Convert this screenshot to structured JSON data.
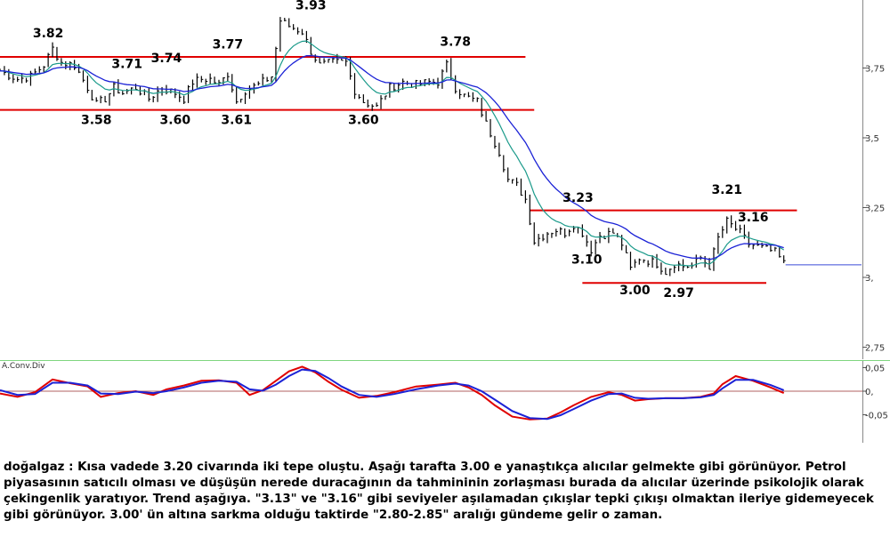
{
  "chart_data": [
    {
      "type": "line",
      "panel": "price",
      "instrument": "doğalgaz",
      "y_ticks": [
        "3,75",
        "3,5",
        "3,25",
        "3,",
        "2,75"
      ],
      "ylim": [
        2.68,
        4.0
      ],
      "xlim": [
        0,
        200
      ],
      "grid": false,
      "colors": {
        "bars": "#000000",
        "ma_fast": "#1a9a8a",
        "ma_slow": "#1b22d6",
        "levels": "#e00000",
        "last_price": "#3a4bd8"
      },
      "price_path": [
        [
          0,
          3.74
        ],
        [
          4,
          3.71
        ],
        [
          7,
          3.72
        ],
        [
          10,
          3.76
        ],
        [
          12,
          3.82
        ],
        [
          14,
          3.77
        ],
        [
          17,
          3.76
        ],
        [
          20,
          3.68
        ],
        [
          22,
          3.62
        ],
        [
          24,
          3.64
        ],
        [
          26,
          3.68
        ],
        [
          28,
          3.66
        ],
        [
          31,
          3.68
        ],
        [
          34,
          3.64
        ],
        [
          37,
          3.68
        ],
        [
          40,
          3.66
        ],
        [
          42,
          3.64
        ],
        [
          44,
          3.7
        ],
        [
          46,
          3.71
        ],
        [
          48,
          3.71
        ],
        [
          50,
          3.69
        ],
        [
          52,
          3.73
        ],
        [
          54,
          3.63
        ],
        [
          56,
          3.67
        ],
        [
          59,
          3.69
        ],
        [
          62,
          3.72
        ],
        [
          64,
          3.92
        ],
        [
          66,
          3.9
        ],
        [
          69,
          3.88
        ],
        [
          71,
          3.81
        ],
        [
          73,
          3.76
        ],
        [
          76,
          3.77
        ],
        [
          79,
          3.77
        ],
        [
          81,
          3.67
        ],
        [
          83,
          3.63
        ],
        [
          86,
          3.61
        ],
        [
          89,
          3.68
        ],
        [
          92,
          3.7
        ],
        [
          95,
          3.69
        ],
        [
          98,
          3.7
        ],
        [
          100,
          3.7
        ],
        [
          102,
          3.76
        ],
        [
          104,
          3.68
        ],
        [
          106,
          3.65
        ],
        [
          109,
          3.63
        ],
        [
          111,
          3.55
        ],
        [
          114,
          3.45
        ],
        [
          116,
          3.35
        ],
        [
          118,
          3.33
        ],
        [
          120,
          3.28
        ],
        [
          122,
          3.13
        ],
        [
          125,
          3.16
        ],
        [
          127,
          3.17
        ],
        [
          129,
          3.16
        ],
        [
          131,
          3.19
        ],
        [
          133,
          3.16
        ],
        [
          135,
          3.1
        ],
        [
          137,
          3.15
        ],
        [
          140,
          3.16
        ],
        [
          142,
          3.12
        ],
        [
          144,
          3.03
        ],
        [
          146,
          3.07
        ],
        [
          148,
          3.06
        ],
        [
          150,
          3.05
        ],
        [
          152,
          3.02
        ],
        [
          154,
          3.05
        ],
        [
          156,
          3.04
        ],
        [
          158,
          3.04
        ],
        [
          160,
          3.07
        ],
        [
          162,
          3.04
        ],
        [
          164,
          3.14
        ],
        [
          166,
          3.2
        ],
        [
          169,
          3.16
        ],
        [
          171,
          3.12
        ],
        [
          173,
          3.11
        ],
        [
          175,
          3.1
        ],
        [
          177,
          3.09
        ],
        [
          179,
          3.05
        ]
      ],
      "series": [
        {
          "values": []
        },
        {
          "values": []
        }
      ],
      "levels": [
        {
          "y": 3.79,
          "x_range": [
            0,
            120
          ]
        },
        {
          "y": 3.6,
          "x_range": [
            0,
            122
          ]
        },
        {
          "y": 3.24,
          "x_range": [
            121,
            182
          ]
        },
        {
          "y": 2.98,
          "x_range": [
            133,
            175
          ]
        }
      ],
      "last_price": 3.045,
      "annotations": [
        {
          "text": "3.82",
          "x": 11,
          "y": 3.86
        },
        {
          "text": "3.58",
          "x": 22,
          "y": 3.55
        },
        {
          "text": "3.71",
          "x": 29,
          "y": 3.75
        },
        {
          "text": "3.74",
          "x": 38,
          "y": 3.77
        },
        {
          "text": "3.60",
          "x": 40,
          "y": 3.55
        },
        {
          "text": "3.77",
          "x": 52,
          "y": 3.82
        },
        {
          "text": "3.61",
          "x": 54,
          "y": 3.55
        },
        {
          "text": "3.93",
          "x": 71,
          "y": 3.96
        },
        {
          "text": "3.60",
          "x": 83,
          "y": 3.55
        },
        {
          "text": "3.78",
          "x": 104,
          "y": 3.83
        },
        {
          "text": "3.23",
          "x": 132,
          "y": 3.27
        },
        {
          "text": "3.21",
          "x": 166,
          "y": 3.3
        },
        {
          "text": "3.16",
          "x": 172,
          "y": 3.2
        },
        {
          "text": "3.10",
          "x": 134,
          "y": 3.05
        },
        {
          "text": "3.00",
          "x": 145,
          "y": 2.94
        },
        {
          "text": "2.97",
          "x": 155,
          "y": 2.93
        }
      ]
    },
    {
      "type": "line",
      "panel": "indicator",
      "title": "A.Conv.Div",
      "y_ticks": [
        "0,05",
        "0,",
        "-0,05"
      ],
      "ylim": [
        -0.075,
        0.075
      ],
      "xlim": [
        0,
        200
      ],
      "zero_line": true,
      "colors": {
        "macd": "#e00000",
        "signal": "#1b22d6",
        "zero": "#b06060",
        "separator": "#7fd67f"
      },
      "series": [
        {
          "values": [
            [
              0,
              -0.005
            ],
            [
              4,
              -0.012
            ],
            [
              8,
              -0.002
            ],
            [
              12,
              0.025
            ],
            [
              16,
              0.017
            ],
            [
              20,
              0.01
            ],
            [
              23,
              -0.012
            ],
            [
              27,
              -0.004
            ],
            [
              31,
              0.0
            ],
            [
              35,
              -0.008
            ],
            [
              38,
              0.004
            ],
            [
              42,
              0.012
            ],
            [
              46,
              0.022
            ],
            [
              50,
              0.023
            ],
            [
              54,
              0.018
            ],
            [
              57,
              -0.008
            ],
            [
              60,
              0.002
            ],
            [
              63,
              0.022
            ],
            [
              66,
              0.042
            ],
            [
              69,
              0.052
            ],
            [
              72,
              0.04
            ],
            [
              75,
              0.02
            ],
            [
              78,
              0.003
            ],
            [
              82,
              -0.014
            ],
            [
              86,
              -0.01
            ],
            [
              90,
              -0.002
            ],
            [
              95,
              0.01
            ],
            [
              100,
              0.014
            ],
            [
              104,
              0.018
            ],
            [
              107,
              0.008
            ],
            [
              110,
              -0.008
            ],
            [
              113,
              -0.03
            ],
            [
              117,
              -0.054
            ],
            [
              121,
              -0.06
            ],
            [
              125,
              -0.058
            ],
            [
              128,
              -0.045
            ],
            [
              131,
              -0.03
            ],
            [
              135,
              -0.012
            ],
            [
              139,
              -0.002
            ],
            [
              142,
              -0.008
            ],
            [
              145,
              -0.02
            ],
            [
              148,
              -0.017
            ],
            [
              152,
              -0.015
            ],
            [
              156,
              -0.015
            ],
            [
              160,
              -0.012
            ],
            [
              163,
              -0.005
            ],
            [
              165,
              0.015
            ],
            [
              168,
              0.032
            ],
            [
              172,
              0.022
            ],
            [
              176,
              0.008
            ],
            [
              179,
              -0.004
            ]
          ]
        },
        {
          "values": [
            [
              0,
              0.002
            ],
            [
              4,
              -0.008
            ],
            [
              8,
              -0.006
            ],
            [
              12,
              0.018
            ],
            [
              16,
              0.018
            ],
            [
              20,
              0.012
            ],
            [
              23,
              -0.005
            ],
            [
              27,
              -0.006
            ],
            [
              31,
              -0.001
            ],
            [
              35,
              -0.004
            ],
            [
              38,
              0.0
            ],
            [
              42,
              0.008
            ],
            [
              46,
              0.018
            ],
            [
              50,
              0.022
            ],
            [
              54,
              0.02
            ],
            [
              57,
              0.004
            ],
            [
              60,
              0.001
            ],
            [
              63,
              0.014
            ],
            [
              66,
              0.032
            ],
            [
              69,
              0.046
            ],
            [
              72,
              0.043
            ],
            [
              75,
              0.028
            ],
            [
              78,
              0.01
            ],
            [
              82,
              -0.008
            ],
            [
              86,
              -0.012
            ],
            [
              90,
              -0.006
            ],
            [
              95,
              0.004
            ],
            [
              100,
              0.012
            ],
            [
              104,
              0.016
            ],
            [
              107,
              0.012
            ],
            [
              110,
              0.0
            ],
            [
              113,
              -0.018
            ],
            [
              117,
              -0.042
            ],
            [
              121,
              -0.057
            ],
            [
              125,
              -0.059
            ],
            [
              128,
              -0.051
            ],
            [
              131,
              -0.038
            ],
            [
              135,
              -0.02
            ],
            [
              139,
              -0.006
            ],
            [
              142,
              -0.005
            ],
            [
              145,
              -0.014
            ],
            [
              148,
              -0.016
            ],
            [
              152,
              -0.015
            ],
            [
              156,
              -0.015
            ],
            [
              160,
              -0.013
            ],
            [
              163,
              -0.008
            ],
            [
              165,
              0.006
            ],
            [
              168,
              0.024
            ],
            [
              172,
              0.024
            ],
            [
              176,
              0.013
            ],
            [
              179,
              0.002
            ]
          ]
        }
      ]
    }
  ],
  "commentary": "doğalgaz : Kısa vadede 3.20 civarında iki tepe oluştu. Aşağı tarafta 3.00 e yanaştıkça alıcılar gelmekte gibi görünüyor. Petrol piyasasının satıcılı olması ve düşüşün nerede duracağının da tahmininin zorlaşması burada da alıcılar üzerinde psikolojik olarak çekingenlik yaratıyor. Trend aşağıya. \"3.13\" ve \"3.16\" gibi seviyeler aşılamadan çıkışlar tepki çıkışı olmaktan ileriye gidemeyecek gibi görünüyor. 3.00' ün altına sarkma olduğu taktirde \"2.80-2.85\" aralığı gündeme gelir o zaman."
}
